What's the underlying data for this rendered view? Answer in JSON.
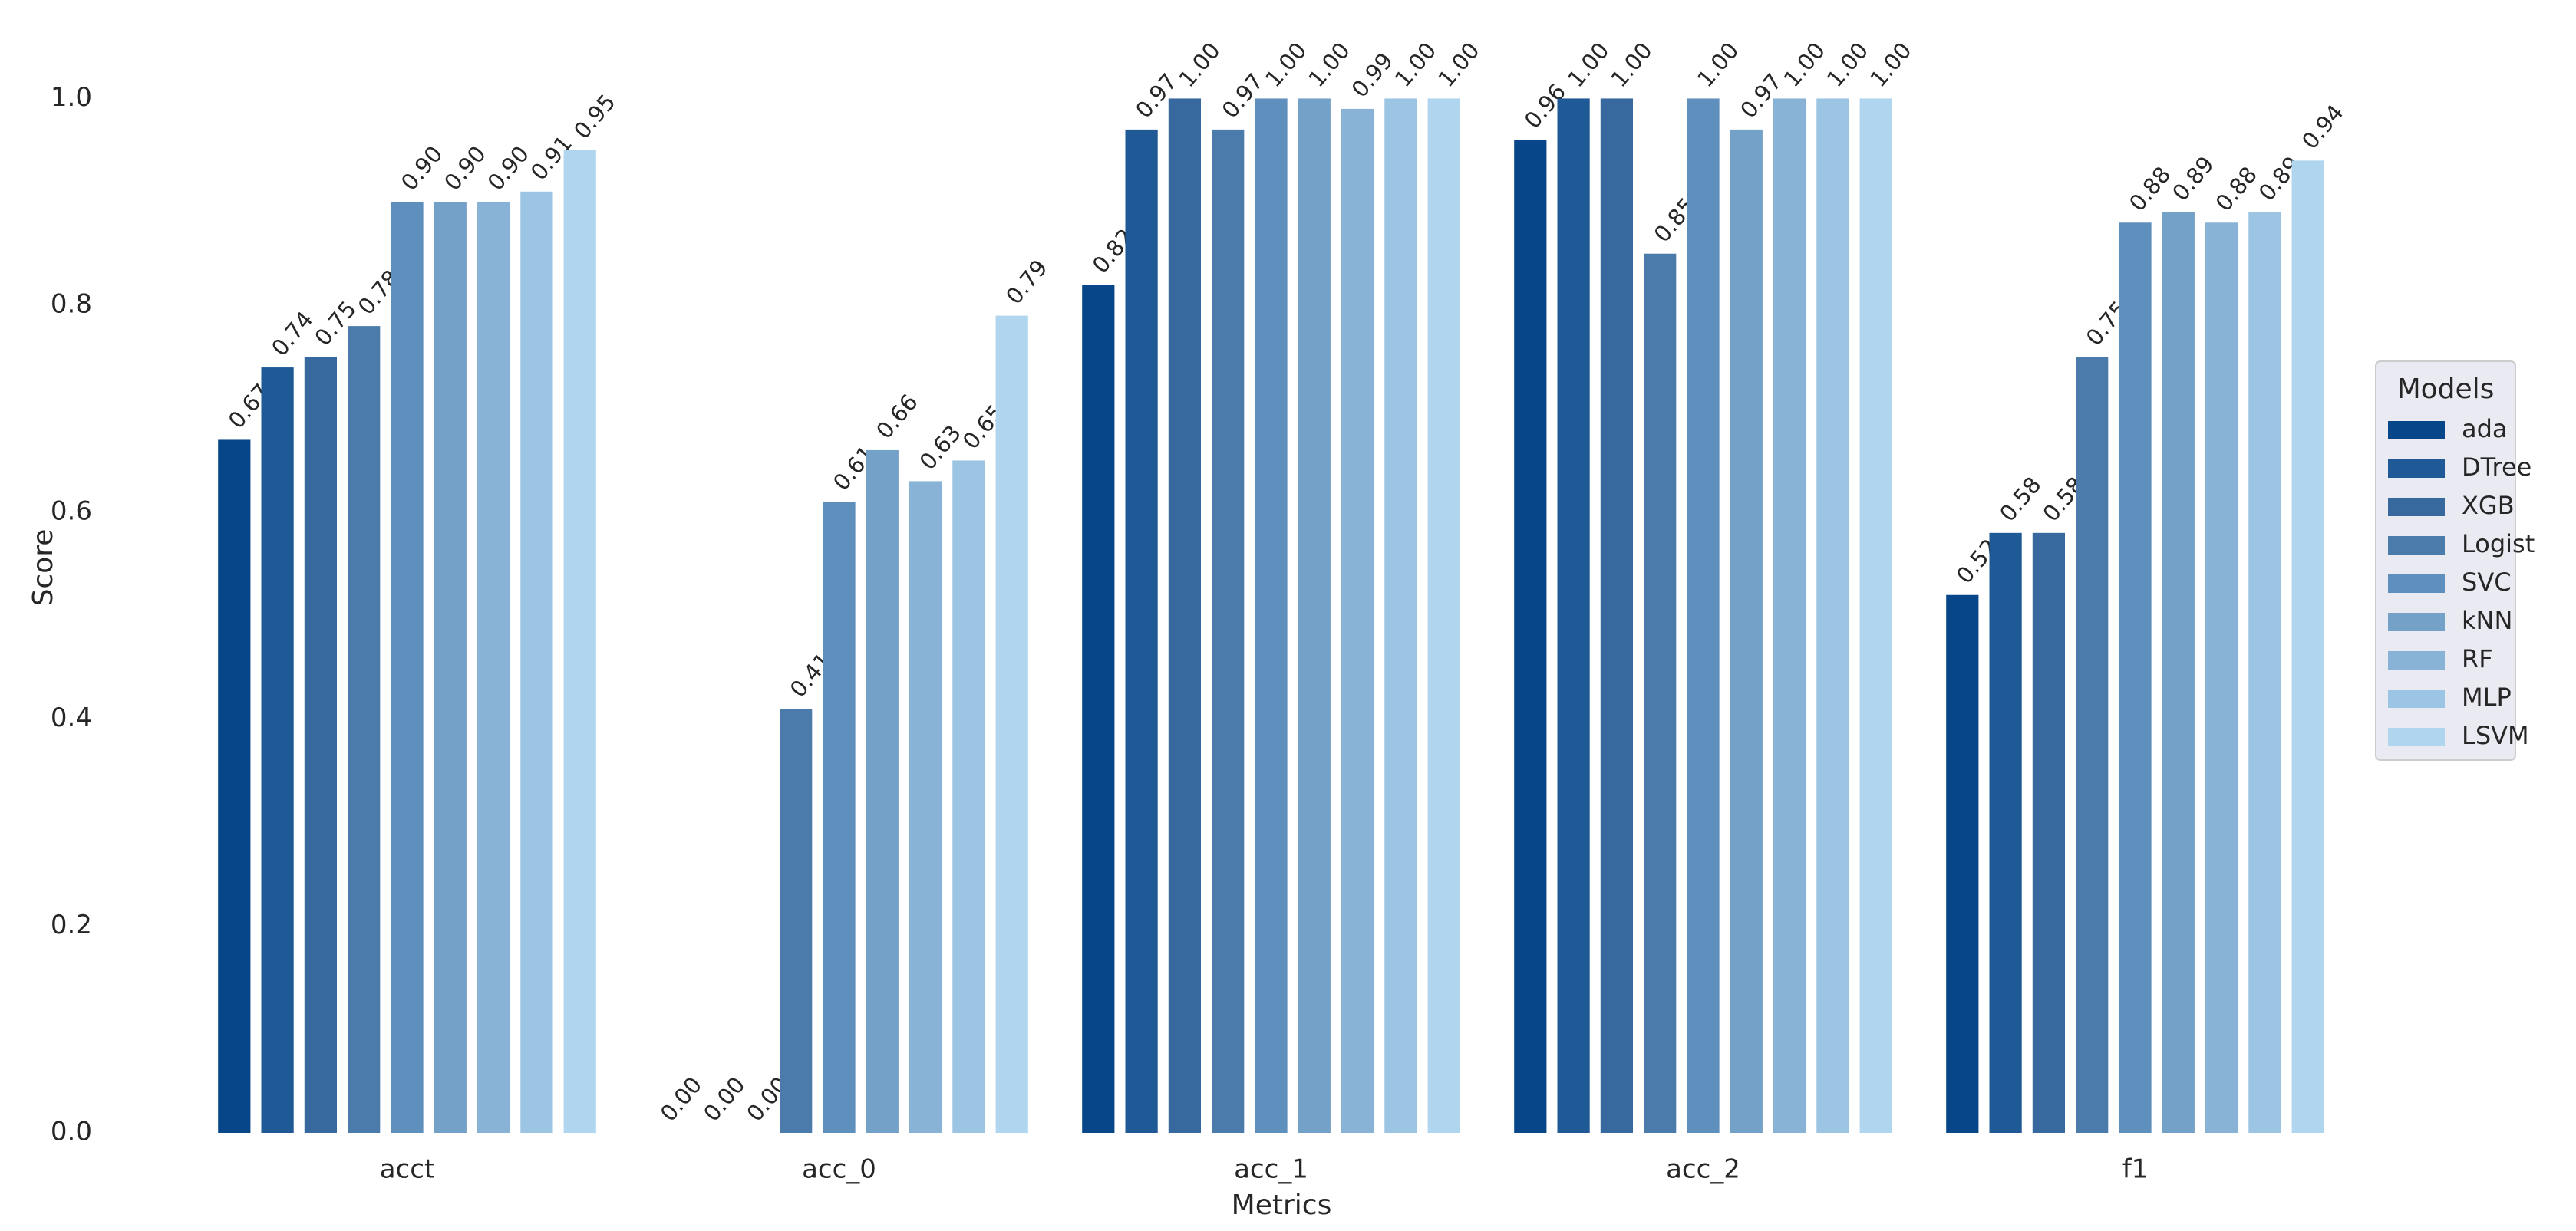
{
  "chart_data": {
    "type": "bar",
    "xlabel": "Metrics",
    "ylabel": "Score",
    "categories": [
      "acct",
      "acc_0",
      "acc_1",
      "acc_2",
      "f1"
    ],
    "legend_title": "Models",
    "legend_position": "right",
    "series": [
      {
        "name": "ada",
        "color": "#08468a",
        "values": [
          0.67,
          0.0,
          0.82,
          0.96,
          0.52
        ],
        "value_labels": [
          "0.67",
          "0.00",
          "0.82",
          "0.96",
          "0.52"
        ]
      },
      {
        "name": "DTree",
        "color": "#1f5a97",
        "values": [
          0.74,
          0.0,
          0.97,
          1.0,
          0.58
        ],
        "value_labels": [
          "0.74",
          "0.00",
          "0.97",
          "1.00",
          "0.58"
        ]
      },
      {
        "name": "XGB",
        "color": "#37699f",
        "values": [
          0.75,
          0.0,
          1.0,
          1.0,
          0.58
        ],
        "value_labels": [
          "0.75",
          "0.00",
          "1.00",
          "1.00",
          "0.58"
        ]
      },
      {
        "name": "Logist",
        "color": "#4b7bab",
        "values": [
          0.78,
          0.41,
          0.97,
          0.85,
          0.75
        ],
        "value_labels": [
          "0.78",
          "0.41",
          "0.97",
          "0.85",
          "0.75"
        ]
      },
      {
        "name": "SVC",
        "color": "#5f8fbc",
        "values": [
          0.9,
          0.61,
          1.0,
          1.0,
          0.88
        ],
        "value_labels": [
          "0.90",
          "0.61",
          "1.00",
          "1.00",
          "0.88"
        ]
      },
      {
        "name": "kNN",
        "color": "#73a1c8",
        "values": [
          0.9,
          0.66,
          1.0,
          0.97,
          0.89
        ],
        "value_labels": [
          "0.90",
          "0.66",
          "1.00",
          "0.97",
          "0.89"
        ]
      },
      {
        "name": "RF",
        "color": "#89b3d6",
        "values": [
          0.9,
          0.63,
          0.99,
          1.0,
          0.88
        ],
        "value_labels": [
          "0.90",
          "0.63",
          "0.99",
          "1.00",
          "0.88"
        ]
      },
      {
        "name": "MLP",
        "color": "#9cc4e3",
        "values": [
          0.91,
          0.65,
          1.0,
          1.0,
          0.89
        ],
        "value_labels": [
          "0.91",
          "0.65",
          "1.00",
          "1.00",
          "0.89"
        ]
      },
      {
        "name": "LSVM",
        "color": "#afd5ef",
        "values": [
          0.95,
          0.79,
          1.0,
          1.0,
          0.94
        ],
        "value_labels": [
          "0.95",
          "0.79",
          "1.00",
          "1.00",
          "0.94"
        ]
      }
    ],
    "ylim": [
      0,
      1.05
    ],
    "yticks": [
      {
        "value": 0,
        "label": "0.0"
      },
      0.2,
      0.4,
      0.6,
      0.8,
      {
        "value": 1,
        "label": "1.0"
      }
    ],
    "grid": false
  }
}
